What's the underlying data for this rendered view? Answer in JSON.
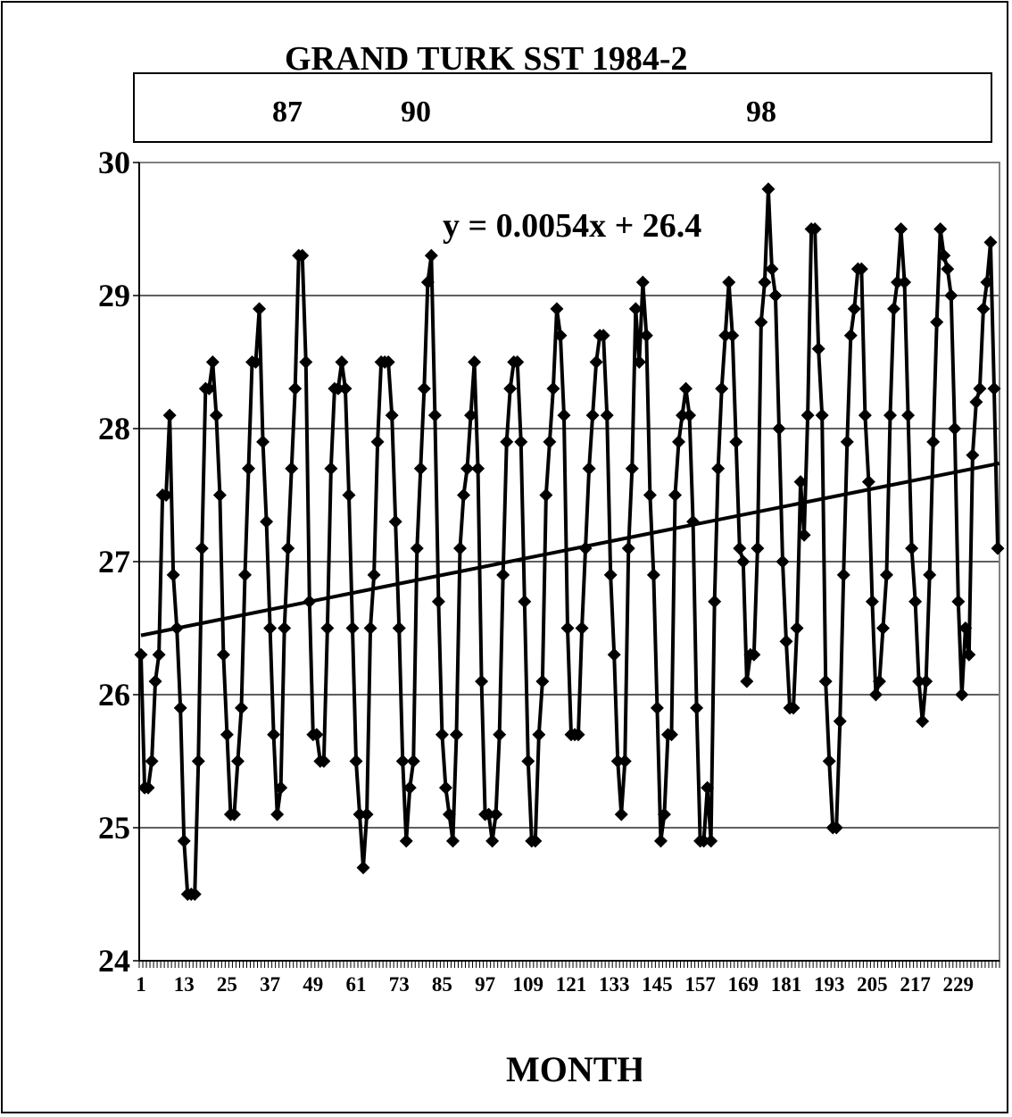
{
  "chart_data": {
    "type": "line",
    "title": "GRAND TURK SST 1984-2",
    "xlabel": "MONTH",
    "ylabel": "",
    "ylim": [
      24,
      30
    ],
    "yticks": [
      "24",
      "25",
      "26",
      "27",
      "28",
      "29",
      "30"
    ],
    "xtick_labels": [
      "1",
      "13",
      "25",
      "37",
      "49",
      "61",
      "73",
      "85",
      "97",
      "109",
      "121",
      "133",
      "145",
      "157",
      "169",
      "181",
      "193",
      "205",
      "217",
      "229"
    ],
    "year_labels": [
      "87",
      "90",
      "98"
    ],
    "trendline": {
      "equation": "y = 0.0054x + 26.4",
      "slope": 0.0054,
      "intercept": 26.44
    },
    "grid": "horizontal",
    "marker": "diamond",
    "colors": {
      "line": "#000000",
      "grid": "#000000",
      "plot_border": "#808080"
    },
    "series": [
      {
        "values": [
          26.3,
          25.3,
          25.3,
          25.5,
          26.1,
          26.3,
          27.5,
          27.5,
          28.1,
          26.9,
          26.5,
          25.9,
          24.9,
          24.5,
          24.5,
          24.5,
          25.5,
          27.1,
          28.3,
          28.3,
          28.5,
          28.1,
          27.5,
          26.3,
          25.7,
          25.1,
          25.1,
          25.5,
          25.9,
          26.9,
          27.7,
          28.5,
          28.5,
          28.9,
          27.9,
          27.3,
          26.5,
          25.7,
          25.1,
          25.3,
          26.5,
          27.1,
          27.7,
          28.3,
          29.3,
          29.3,
          28.5,
          26.7,
          25.7,
          25.7,
          25.5,
          25.5,
          26.5,
          27.7,
          28.3,
          28.3,
          28.5,
          28.3,
          27.5,
          26.5,
          25.5,
          25.1,
          24.7,
          25.1,
          26.5,
          26.9,
          27.9,
          28.5,
          28.5,
          28.5,
          28.1,
          27.3,
          26.5,
          25.5,
          24.9,
          25.3,
          25.5,
          27.1,
          27.7,
          28.3,
          29.1,
          29.3,
          28.1,
          26.7,
          25.7,
          25.3,
          25.1,
          24.9,
          25.7,
          27.1,
          27.5,
          27.7,
          28.1,
          28.5,
          27.7,
          26.1,
          25.1,
          25.1,
          24.9,
          25.1,
          25.7,
          26.9,
          27.9,
          28.3,
          28.5,
          28.5,
          27.9,
          26.7,
          25.5,
          24.9,
          24.9,
          25.7,
          26.1,
          27.5,
          27.9,
          28.3,
          28.9,
          28.7,
          28.1,
          26.5,
          25.7,
          25.7,
          25.7,
          26.5,
          27.1,
          27.7,
          28.1,
          28.5,
          28.7,
          28.7,
          28.1,
          26.9,
          26.3,
          25.5,
          25.1,
          25.5,
          27.1,
          27.7,
          28.9,
          28.5,
          29.1,
          28.7,
          27.5,
          26.9,
          25.9,
          24.9,
          25.1,
          25.7,
          25.7,
          27.5,
          27.9,
          28.1,
          28.3,
          28.1,
          27.3,
          25.9,
          24.9,
          24.9,
          25.3,
          24.9,
          26.7,
          27.7,
          28.3,
          28.7,
          29.1,
          28.7,
          27.9,
          27.1,
          27.0,
          26.1,
          26.3,
          26.3,
          27.1,
          28.8,
          29.1,
          29.8,
          29.2,
          29.0,
          28.0,
          27.0,
          26.4,
          25.9,
          25.9,
          26.5,
          27.6,
          27.2,
          28.1,
          29.5,
          29.5,
          28.6,
          28.1,
          26.1,
          25.5,
          25.0,
          25.0,
          25.8,
          26.9,
          27.9,
          28.7,
          28.9,
          29.2,
          29.2,
          28.1,
          27.6,
          26.7,
          26.0,
          26.1,
          26.5,
          26.9,
          28.1,
          28.9,
          29.1,
          29.5,
          29.1,
          28.1,
          27.1,
          26.7,
          26.1,
          25.8,
          26.1,
          26.9,
          27.9,
          28.8,
          29.5,
          29.3,
          29.2,
          29.0,
          28.0,
          26.7,
          26.0,
          26.5,
          26.3,
          27.8,
          28.2,
          28.3,
          28.9,
          29.1,
          29.4,
          28.3,
          27.1
        ]
      }
    ]
  }
}
